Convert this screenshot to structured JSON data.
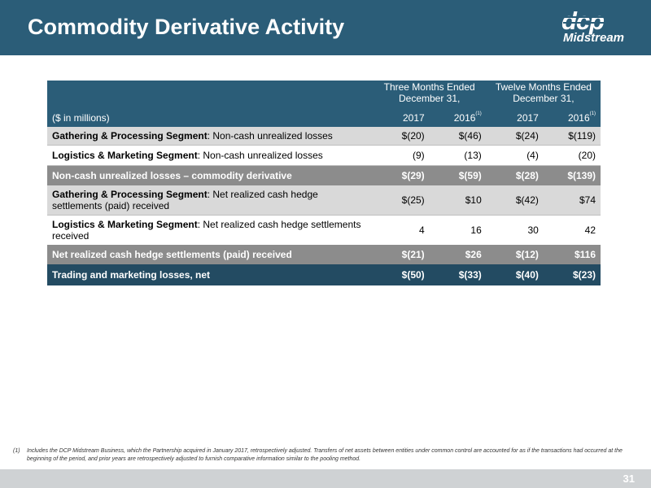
{
  "slide": {
    "title": "Commodity Derivative Activity",
    "page_number": "31"
  },
  "logo": {
    "top": "dcp",
    "bottom": "Midstream"
  },
  "table": {
    "units_label": "($ in millions)",
    "group_three": "Three Months Ended December 31,",
    "group_twelve": "Twelve Months Ended December 31,",
    "years": [
      "2017",
      "2016",
      "2017",
      "2016"
    ],
    "year_footnote_marker": "(1)",
    "rows": [
      {
        "segment": "Gathering & Processing Segment",
        "desc": ": Non-cash unrealized losses",
        "values": [
          "$(20)",
          "$(46)",
          "$(24)",
          "$(119)"
        ]
      },
      {
        "segment": "Logistics & Marketing Segment",
        "desc": ": Non-cash unrealized losses",
        "values": [
          "(9)",
          "(13)",
          "(4)",
          "(20)"
        ]
      },
      {
        "label": "Non-cash unrealized losses – commodity derivative",
        "values": [
          "$(29)",
          "$(59)",
          "$(28)",
          "$(139)"
        ]
      },
      {
        "segment": "Gathering & Processing Segment",
        "desc": ": Net realized cash hedge settlements (paid) received",
        "values": [
          "$(25)",
          "$10",
          "$(42)",
          "$74"
        ]
      },
      {
        "segment": "Logistics & Marketing Segment",
        "desc": ": Net realized cash hedge settlements received",
        "values": [
          "4",
          "16",
          "30",
          "42"
        ]
      },
      {
        "label": "Net realized cash hedge settlements (paid) received",
        "values": [
          "$(21)",
          "$26",
          "$(12)",
          "$116"
        ]
      },
      {
        "label": "Trading and marketing losses, net",
        "values": [
          "$(50)",
          "$(33)",
          "$(40)",
          "$(23)"
        ]
      }
    ]
  },
  "footnote": {
    "marker": "(1)",
    "text": "Includes the DCP Midstream Business, which the Partnership acquired in January 2017, retrospectively adjusted. Transfers of net assets between entities under common control are accounted for as if the transactions had occurred at the beginning of the period, and prior years are retrospectively adjusted to furnish comparative information similar to the pooling method."
  },
  "colors": {
    "header_blue": "#2b5d78",
    "dark_blue": "#234b62",
    "subtotal_gray": "#8c8c8c",
    "row_light_gray": "#d9d9d9",
    "footer_gray": "#cfd2d4"
  }
}
